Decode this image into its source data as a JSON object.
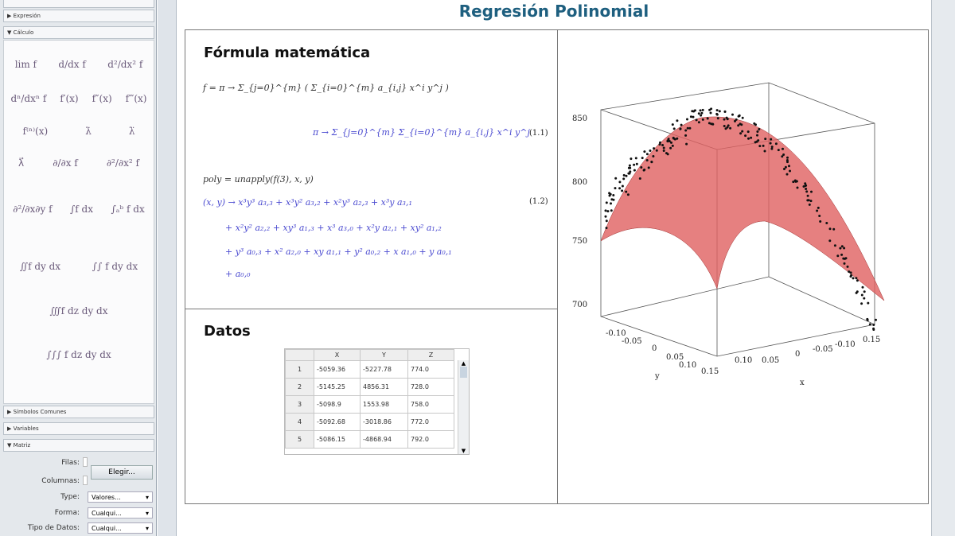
{
  "palette": {
    "sections": [
      "Expresión",
      "Cálculo",
      "Símbolos Comunes",
      "Variables",
      "Matriz"
    ],
    "calc_items": [
      "lim f",
      "d/dx f",
      "d²/dx² f",
      "dⁿ/dxⁿ f",
      "f′(x)",
      "f″(x)",
      "f‴(x)",
      "f⁽ⁿ⁾(x)",
      "λ̇",
      "λ̈",
      "λ⃗",
      "∂/∂x f",
      "∂²/∂x² f",
      "∂²/∂x∂y f",
      "∫f dx",
      "∫ₐᵇ f dx",
      "∬f dy dx",
      "∫∫ f dy dx",
      "∭f dz dy dx",
      "∫∫∫ f dz dy dx"
    ],
    "matrix": {
      "rows_label": "Filas:",
      "cols_label": "Columnas:",
      "choose_button": "Elegir...",
      "type_label": "Type:",
      "type_value": "Valores...",
      "shape_label": "Forma:",
      "shape_value": "Cualqui...",
      "datatype_label": "Tipo de Datos:",
      "datatype_value": "Cualqui..."
    }
  },
  "document": {
    "title": "Regresión Polinomial",
    "formula_heading": "Fórmula matemática",
    "eq1": "f = π → Σ_{j=0}^{m} ( Σ_{i=0}^{m} a_{i,j} x^i y^j )",
    "eq1_result": "π → Σ_{j=0}^{m} Σ_{i=0}^{m} a_{i,j} x^i y^j",
    "eq1_label": "(1.1)",
    "eq2": "poly = unapply(f(3), x, y)",
    "eq2_result": [
      "(x, y) → x³y³ a₃,₃ + x³y² a₃,₂ + x²y³ a₂,₃ + x³y a₃,₁",
      "+ x²y² a₂,₂ + xy³ a₁,₃ + x³ a₃,₀ + x²y a₂,₁ + xy² a₁,₂",
      "+ y³ a₀,₃ + x² a₂,₀ + xy a₁,₁ + y² a₀,₂ + x a₁,₀ + y a₀,₁",
      "+ a₀,₀"
    ],
    "eq2_label": "(1.2)",
    "data_heading": "Datos",
    "table": {
      "columns": [
        "X",
        "Y",
        "Z"
      ],
      "rows": [
        [
          "1",
          "-5059.36",
          "-5227.78",
          "774.0"
        ],
        [
          "2",
          "-5145.25",
          "4856.31",
          "728.0"
        ],
        [
          "3",
          "-5098.9",
          "1553.98",
          "758.0"
        ],
        [
          "4",
          "-5092.68",
          "-3018.86",
          "772.0"
        ],
        [
          "5",
          "-5086.15",
          "-4868.94",
          "792.0"
        ]
      ]
    }
  },
  "plot": {
    "z_ticks": [
      "850",
      "800",
      "750",
      "700"
    ],
    "x_ticks": [
      "-0.10",
      "-0.05",
      "0",
      "0.05",
      "0.10",
      "0.15"
    ],
    "y_ticks": [
      "0.15",
      "0.10",
      "0.05",
      "0",
      "-0.05",
      "-0.10",
      "0.15"
    ],
    "x_label": "y",
    "y_label": "x",
    "surface_color": "#e06060"
  }
}
